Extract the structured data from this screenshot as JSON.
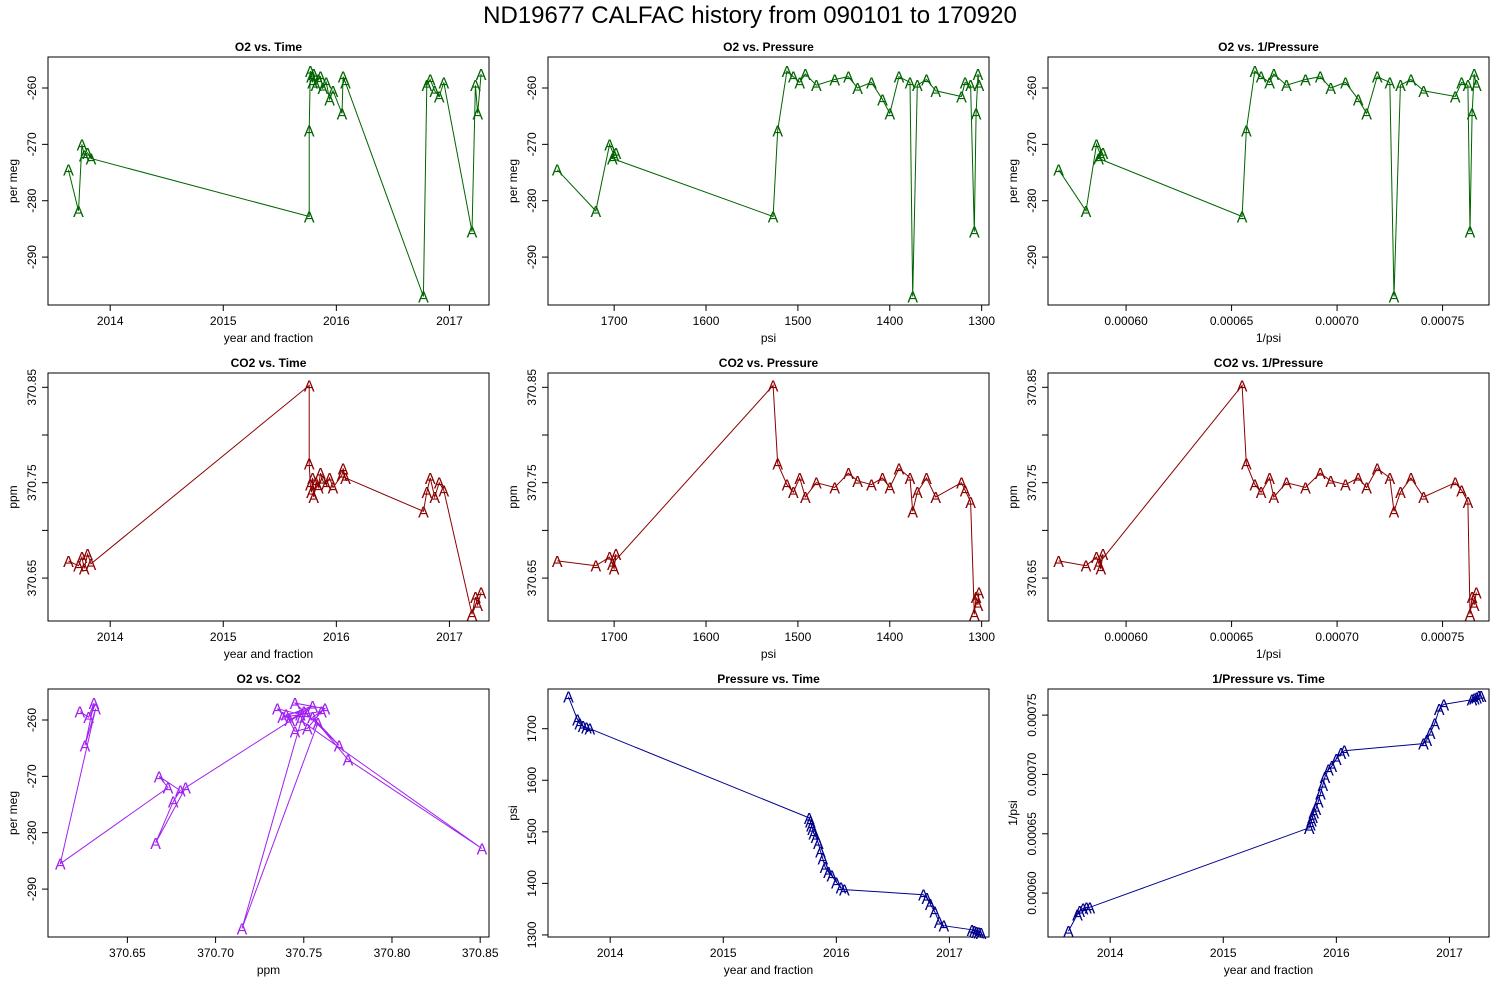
{
  "title": "ND19677   CALFAC history from  090101  to  170920",
  "colors": {
    "o2": "#006400",
    "co2": "#8b0000",
    "o2co2": "#a020f0",
    "pressure": "#00008b"
  },
  "chart_data": [
    {
      "type": "line",
      "title": "O2 vs. Time",
      "xlabel": "year and fraction",
      "ylabel": "per meg",
      "xlim": [
        2013.45,
        2017.35
      ],
      "ylim": [
        -298.5,
        -254.5
      ],
      "xticks": [
        2014,
        2015,
        2016,
        2017
      ],
      "xtick_labels": [
        "2014",
        "2015",
        "2016",
        "2017"
      ],
      "yticks": [
        -290,
        -280,
        -270,
        -260
      ],
      "ytick_labels": [
        "-290",
        "-280",
        "-270",
        "-260"
      ],
      "color": "o2",
      "marker": "A",
      "x": [
        2013.63,
        2013.72,
        2013.75,
        2013.77,
        2013.8,
        2013.83,
        2015.76,
        2015.76,
        2015.77,
        2015.78,
        2015.79,
        2015.8,
        2015.82,
        2015.84,
        2015.86,
        2015.88,
        2015.91,
        2015.94,
        2015.97,
        2016.05,
        2016.06,
        2016.08,
        2016.77,
        2016.8,
        2016.83,
        2016.87,
        2016.91,
        2016.95,
        2017.2,
        2017.23,
        2017.25,
        2017.28
      ],
      "y": [
        -274.5,
        -281.8,
        -270.0,
        -272.0,
        -271.5,
        -272.5,
        -282.8,
        -267.5,
        -257.0,
        -258.0,
        -259.0,
        -257.5,
        -259.5,
        -258.5,
        -258.0,
        -260.0,
        -259.0,
        -262.0,
        -260.5,
        -264.5,
        -258.0,
        -259.0,
        -297.0,
        -259.5,
        -258.5,
        -260.5,
        -261.5,
        -259.0,
        -285.5,
        -259.5,
        -264.5,
        -257.5
      ]
    },
    {
      "type": "line",
      "title": "O2 vs. Pressure",
      "xlabel": "psi",
      "ylabel": "per meg",
      "xlim": [
        1772,
        1292
      ],
      "ylim": [
        -298.5,
        -254.5
      ],
      "xticks": [
        1700,
        1600,
        1500,
        1400,
        1300
      ],
      "xtick_labels": [
        "1700",
        "1600",
        "1500",
        "1400",
        "1300"
      ],
      "yticks": [
        -290,
        -280,
        -270,
        -260
      ],
      "ytick_labels": [
        "-290",
        "-280",
        "-270",
        "-260"
      ],
      "color": "o2",
      "marker": "A",
      "x": [
        1762,
        1720,
        1705,
        1700,
        1698,
        1702,
        1527,
        1522,
        1512,
        1505,
        1498,
        1492,
        1480,
        1460,
        1445,
        1435,
        1420,
        1408,
        1400,
        1390,
        1378,
        1375,
        1370,
        1360,
        1350,
        1322,
        1318,
        1312,
        1308,
        1306,
        1304,
        1303
      ],
      "y": [
        -274.5,
        -281.8,
        -270.0,
        -272.0,
        -271.5,
        -272.5,
        -282.8,
        -267.5,
        -257.0,
        -258.0,
        -259.0,
        -257.5,
        -259.5,
        -258.5,
        -258.0,
        -260.0,
        -259.0,
        -262.0,
        -264.5,
        -258.0,
        -259.0,
        -297.0,
        -259.5,
        -258.5,
        -260.5,
        -261.5,
        -259.0,
        -259.5,
        -285.5,
        -264.5,
        -257.5,
        -259.5
      ]
    },
    {
      "type": "line",
      "title": "O2 vs. 1/Pressure",
      "xlabel": "1/psi",
      "ylabel": "per meg",
      "xlim": [
        0.000563,
        0.000772
      ],
      "ylim": [
        -298.5,
        -254.5
      ],
      "xticks": [
        0.0006,
        0.00065,
        0.0007,
        0.00075
      ],
      "xtick_labels": [
        "0.00060",
        "0.00065",
        "0.00070",
        "0.00075"
      ],
      "yticks": [
        -290,
        -280,
        -270,
        -260
      ],
      "ytick_labels": [
        "-290",
        "-280",
        "-270",
        "-260"
      ],
      "color": "o2",
      "marker": "A",
      "x": [
        0.000568,
        0.000581,
        0.000586,
        0.000588,
        0.000589,
        0.000587,
        0.000655,
        0.000657,
        0.000661,
        0.000664,
        0.000668,
        0.00067,
        0.000676,
        0.000685,
        0.000692,
        0.000697,
        0.000704,
        0.00071,
        0.000714,
        0.000719,
        0.000725,
        0.000727,
        0.00073,
        0.000735,
        0.000741,
        0.000756,
        0.000759,
        0.000762,
        0.000763,
        0.000764,
        0.000765,
        0.000766
      ],
      "y": [
        -274.5,
        -281.8,
        -270.0,
        -272.0,
        -271.5,
        -272.5,
        -282.8,
        -267.5,
        -257.0,
        -258.0,
        -259.0,
        -257.5,
        -259.5,
        -258.5,
        -258.0,
        -260.0,
        -259.0,
        -262.0,
        -264.5,
        -258.0,
        -259.0,
        -297.0,
        -259.5,
        -258.5,
        -260.5,
        -261.5,
        -259.0,
        -259.5,
        -285.5,
        -264.5,
        -257.5,
        -259.5
      ]
    },
    {
      "type": "line",
      "title": "CO2 vs. Time",
      "xlabel": "year and fraction",
      "ylabel": "ppm",
      "xlim": [
        2013.45,
        2017.35
      ],
      "ylim": [
        370.605,
        370.865
      ],
      "xticks": [
        2014,
        2015,
        2016,
        2017
      ],
      "xtick_labels": [
        "2014",
        "2015",
        "2016",
        "2017"
      ],
      "yticks": [
        370.65,
        370.7,
        370.75,
        370.8,
        370.85
      ],
      "ytick_labels": [
        "370.65",
        "",
        "370.75",
        "",
        "370.85"
      ],
      "color": "co2",
      "marker": "A",
      "x": [
        2013.63,
        2013.72,
        2013.75,
        2013.77,
        2013.8,
        2013.83,
        2015.76,
        2015.76,
        2015.77,
        2015.78,
        2015.79,
        2015.8,
        2015.82,
        2015.84,
        2015.86,
        2015.88,
        2015.91,
        2015.94,
        2015.97,
        2016.05,
        2016.06,
        2016.08,
        2016.77,
        2016.8,
        2016.83,
        2016.87,
        2016.91,
        2016.95,
        2017.2,
        2017.23,
        2017.25,
        2017.28
      ],
      "y": [
        370.668,
        370.663,
        370.672,
        370.66,
        370.675,
        370.665,
        370.852,
        370.77,
        370.748,
        370.74,
        370.755,
        370.735,
        370.75,
        370.745,
        370.76,
        370.752,
        370.748,
        370.755,
        370.745,
        370.758,
        370.765,
        370.755,
        370.72,
        370.74,
        370.755,
        370.735,
        370.75,
        370.742,
        370.612,
        370.63,
        370.622,
        370.635
      ]
    },
    {
      "type": "line",
      "title": "CO2 vs. Pressure",
      "xlabel": "psi",
      "ylabel": "ppm",
      "xlim": [
        1772,
        1292
      ],
      "ylim": [
        370.605,
        370.865
      ],
      "xticks": [
        1700,
        1600,
        1500,
        1400,
        1300
      ],
      "xtick_labels": [
        "1700",
        "1600",
        "1500",
        "1400",
        "1300"
      ],
      "yticks": [
        370.65,
        370.7,
        370.75,
        370.8,
        370.85
      ],
      "ytick_labels": [
        "370.65",
        "",
        "370.75",
        "",
        "370.85"
      ],
      "color": "co2",
      "marker": "A",
      "x": [
        1762,
        1720,
        1705,
        1700,
        1698,
        1702,
        1527,
        1522,
        1512,
        1505,
        1498,
        1492,
        1480,
        1460,
        1445,
        1435,
        1420,
        1408,
        1400,
        1390,
        1378,
        1375,
        1370,
        1360,
        1350,
        1322,
        1318,
        1312,
        1308,
        1306,
        1304,
        1303
      ],
      "y": [
        370.668,
        370.663,
        370.672,
        370.66,
        370.675,
        370.665,
        370.852,
        370.77,
        370.748,
        370.74,
        370.755,
        370.735,
        370.75,
        370.745,
        370.76,
        370.752,
        370.748,
        370.755,
        370.745,
        370.765,
        370.755,
        370.72,
        370.74,
        370.755,
        370.735,
        370.75,
        370.742,
        370.73,
        370.612,
        370.63,
        370.622,
        370.635
      ]
    },
    {
      "type": "line",
      "title": "CO2 vs. 1/Pressure",
      "xlabel": "1/psi",
      "ylabel": "ppm",
      "xlim": [
        0.000563,
        0.000772
      ],
      "ylim": [
        370.605,
        370.865
      ],
      "xticks": [
        0.0006,
        0.00065,
        0.0007,
        0.00075
      ],
      "xtick_labels": [
        "0.00060",
        "0.00065",
        "0.00070",
        "0.00075"
      ],
      "yticks": [
        370.65,
        370.7,
        370.75,
        370.8,
        370.85
      ],
      "ytick_labels": [
        "370.65",
        "",
        "370.75",
        "",
        "370.85"
      ],
      "color": "co2",
      "marker": "A",
      "x": [
        0.000568,
        0.000581,
        0.000586,
        0.000588,
        0.000589,
        0.000587,
        0.000655,
        0.000657,
        0.000661,
        0.000664,
        0.000668,
        0.00067,
        0.000676,
        0.000685,
        0.000692,
        0.000697,
        0.000704,
        0.00071,
        0.000714,
        0.000719,
        0.000725,
        0.000727,
        0.00073,
        0.000735,
        0.000741,
        0.000756,
        0.000759,
        0.000762,
        0.000763,
        0.000764,
        0.000765,
        0.000766
      ],
      "y": [
        370.668,
        370.663,
        370.672,
        370.66,
        370.675,
        370.665,
        370.852,
        370.77,
        370.748,
        370.74,
        370.755,
        370.735,
        370.75,
        370.745,
        370.76,
        370.752,
        370.748,
        370.755,
        370.745,
        370.765,
        370.755,
        370.72,
        370.74,
        370.755,
        370.735,
        370.75,
        370.742,
        370.73,
        370.612,
        370.63,
        370.622,
        370.635
      ]
    },
    {
      "type": "line",
      "title": "O2 vs. CO2",
      "xlabel": "ppm",
      "ylabel": "per meg",
      "xlim": [
        370.605,
        370.855
      ],
      "ylim": [
        -298.5,
        -254.5
      ],
      "xticks": [
        370.65,
        370.7,
        370.75,
        370.8,
        370.85
      ],
      "xtick_labels": [
        "370.65",
        "370.70",
        "370.75",
        "370.80",
        "370.85"
      ],
      "yticks": [
        -290,
        -280,
        -270,
        -260
      ],
      "ytick_labels": [
        "-290",
        "-280",
        "-270",
        "-260"
      ],
      "color": "o2co2",
      "marker": "A",
      "x": [
        370.623,
        370.628,
        370.631,
        370.626,
        370.632,
        370.612,
        370.673,
        370.668,
        370.68,
        370.676,
        370.666,
        370.683,
        370.748,
        370.735,
        370.742,
        370.755,
        370.738,
        370.76,
        370.752,
        370.745,
        370.74,
        370.75,
        370.715,
        370.758,
        370.77,
        370.752,
        370.745,
        370.762,
        370.755,
        370.775,
        370.851,
        370.748
      ],
      "y": [
        -258.5,
        -259.5,
        -257.0,
        -264.5,
        -258.0,
        -285.5,
        -272.0,
        -270.0,
        -272.5,
        -274.5,
        -281.8,
        -272.0,
        -259.0,
        -258.0,
        -260.0,
        -257.5,
        -259.5,
        -258.5,
        -261.5,
        -262.0,
        -259.0,
        -258.5,
        -297.0,
        -260.5,
        -264.5,
        -259.0,
        -257.0,
        -258.0,
        -259.5,
        -267.0,
        -282.8,
        -260.0
      ]
    },
    {
      "type": "line",
      "title": "Pressure vs. Time",
      "xlabel": "year and fraction",
      "ylabel": "psi",
      "xlim": [
        2013.45,
        2017.35
      ],
      "ylim": [
        1296,
        1777
      ],
      "xticks": [
        2014,
        2015,
        2016,
        2017
      ],
      "xtick_labels": [
        "2014",
        "2015",
        "2016",
        "2017"
      ],
      "yticks": [
        1300,
        1400,
        1500,
        1600,
        1700
      ],
      "ytick_labels": [
        "1300",
        "1400",
        "1500",
        "1600",
        "1700"
      ],
      "color": "pressure",
      "marker": "A",
      "x": [
        2013.63,
        2013.71,
        2013.73,
        2013.76,
        2013.79,
        2013.82,
        2015.76,
        2015.77,
        2015.78,
        2015.79,
        2015.8,
        2015.82,
        2015.84,
        2015.86,
        2015.88,
        2015.9,
        2015.93,
        2015.96,
        2016.0,
        2016.04,
        2016.07,
        2016.77,
        2016.8,
        2016.83,
        2016.87,
        2016.91,
        2016.95,
        2017.2,
        2017.22,
        2017.24,
        2017.26,
        2017.28
      ],
      "y": [
        1762,
        1718,
        1710,
        1705,
        1702,
        1700,
        1527,
        1520,
        1512,
        1505,
        1497,
        1490,
        1478,
        1462,
        1448,
        1432,
        1422,
        1415,
        1402,
        1392,
        1388,
        1378,
        1372,
        1360,
        1345,
        1325,
        1318,
        1310,
        1308,
        1306,
        1305,
        1304
      ]
    },
    {
      "type": "line",
      "title": "1/Pressure vs. Time",
      "xlabel": "year and fraction",
      "ylabel": "1/psi",
      "xlim": [
        2013.45,
        2017.35
      ],
      "ylim": [
        0.000563,
        0.000772
      ],
      "xticks": [
        2014,
        2015,
        2016,
        2017
      ],
      "xtick_labels": [
        "2014",
        "2015",
        "2016",
        "2017"
      ],
      "yticks": [
        0.0006,
        0.00065,
        0.0007,
        0.00075
      ],
      "ytick_labels": [
        "0.00060",
        "0.00065",
        "0.00070",
        "0.00075"
      ],
      "color": "pressure",
      "marker": "A",
      "x": [
        2013.63,
        2013.71,
        2013.73,
        2013.76,
        2013.79,
        2013.82,
        2015.76,
        2015.77,
        2015.78,
        2015.79,
        2015.8,
        2015.82,
        2015.84,
        2015.86,
        2015.88,
        2015.9,
        2015.93,
        2015.96,
        2016.0,
        2016.04,
        2016.07,
        2016.77,
        2016.8,
        2016.83,
        2016.87,
        2016.91,
        2016.95,
        2017.2,
        2017.22,
        2017.24,
        2017.26,
        2017.28
      ],
      "y": [
        0.000568,
        0.000582,
        0.000585,
        0.000587,
        0.000588,
        0.000588,
        0.000655,
        0.000658,
        0.000661,
        0.000664,
        0.000668,
        0.000671,
        0.000677,
        0.000684,
        0.000691,
        0.000698,
        0.000704,
        0.000707,
        0.000713,
        0.000718,
        0.00072,
        0.000726,
        0.000729,
        0.000735,
        0.000743,
        0.000755,
        0.000759,
        0.000763,
        0.000764,
        0.000765,
        0.000766,
        0.000766
      ]
    }
  ]
}
